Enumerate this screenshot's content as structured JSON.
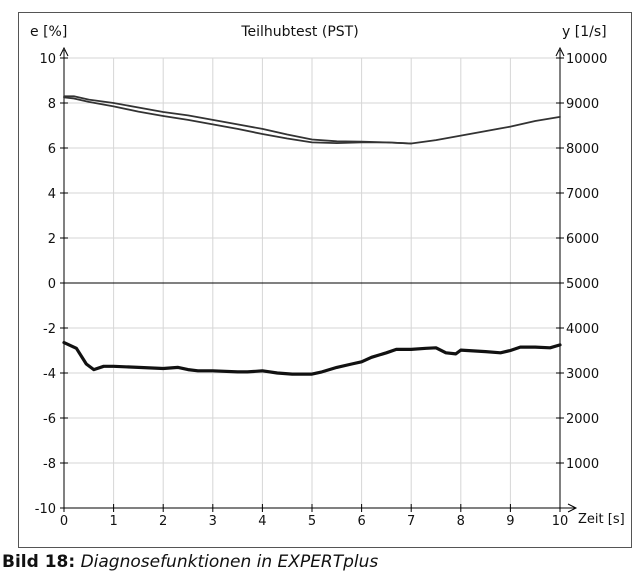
{
  "chart_data": {
    "type": "line",
    "title": "Teilhubtest (PST)",
    "xlabel": "Zeit [s]",
    "ylabel_left": "e [%]",
    "ylabel_right": "y [1/s]",
    "xlim": [
      0,
      10
    ],
    "ylim_left": [
      -10,
      10
    ],
    "ylim_right": [
      0,
      10000
    ],
    "x_ticks": [
      0,
      1,
      2,
      3,
      4,
      5,
      6,
      7,
      8,
      9,
      10
    ],
    "y_left_ticks": [
      -10,
      -8,
      -6,
      -4,
      -2,
      0,
      2,
      4,
      6,
      8,
      10
    ],
    "y_right_ticks": [
      1000,
      2000,
      3000,
      4000,
      5000,
      6000,
      7000,
      8000,
      9000,
      10000
    ],
    "grid": true,
    "series": [
      {
        "axis": "left",
        "color": "#333333",
        "x": [
          0,
          0.2,
          0.5,
          1,
          1.5,
          2,
          2.5,
          3,
          3.5,
          4,
          4.5,
          5,
          5.5,
          6,
          6.5,
          7,
          7.5,
          8,
          8.5,
          9,
          9.5,
          10
        ],
        "y": [
          8.3,
          8.3,
          8.15,
          8.0,
          7.8,
          7.6,
          7.45,
          7.25,
          7.05,
          6.85,
          6.6,
          6.38,
          6.3,
          6.28,
          6.25,
          6.2,
          6.35,
          6.55,
          6.75,
          6.95,
          7.2,
          7.38
        ]
      },
      {
        "axis": "left",
        "color": "#333333",
        "x": [
          0,
          0.2,
          0.5,
          1,
          1.5,
          2,
          2.5,
          3,
          3.5,
          4,
          4.5,
          5,
          5.5,
          6,
          6.5,
          7
        ],
        "y": [
          8.25,
          8.2,
          8.05,
          7.85,
          7.62,
          7.42,
          7.25,
          7.05,
          6.85,
          6.62,
          6.42,
          6.25,
          6.22,
          6.25,
          6.25,
          6.2
        ]
      },
      {
        "axis": "left",
        "color": "#111111",
        "x": [
          0,
          0.25,
          0.45,
          0.6,
          0.8,
          1.0,
          1.5,
          2,
          2.3,
          2.5,
          2.7,
          3,
          3.5,
          3.7,
          4,
          4.3,
          4.6,
          5,
          5.2,
          5.5,
          5.8,
          6,
          6.2,
          6.5,
          6.7,
          7,
          7.3,
          7.5,
          7.7,
          7.9,
          8,
          8.5,
          8.8,
          9,
          9.2,
          9.5,
          9.8,
          10
        ],
        "y": [
          -2.65,
          -2.9,
          -3.6,
          -3.85,
          -3.7,
          -3.7,
          -3.75,
          -3.8,
          -3.75,
          -3.85,
          -3.9,
          -3.9,
          -3.95,
          -3.95,
          -3.9,
          -4.0,
          -4.05,
          -4.05,
          -3.95,
          -3.75,
          -3.6,
          -3.5,
          -3.3,
          -3.1,
          -2.95,
          -2.95,
          -2.9,
          -2.88,
          -3.1,
          -3.15,
          -2.98,
          -3.05,
          -3.1,
          -3.0,
          -2.85,
          -2.85,
          -2.88,
          -2.75
        ]
      }
    ]
  },
  "caption": {
    "label": "Bild 18:",
    "text": "Diagnosefunktionen in EXPERTplus"
  }
}
